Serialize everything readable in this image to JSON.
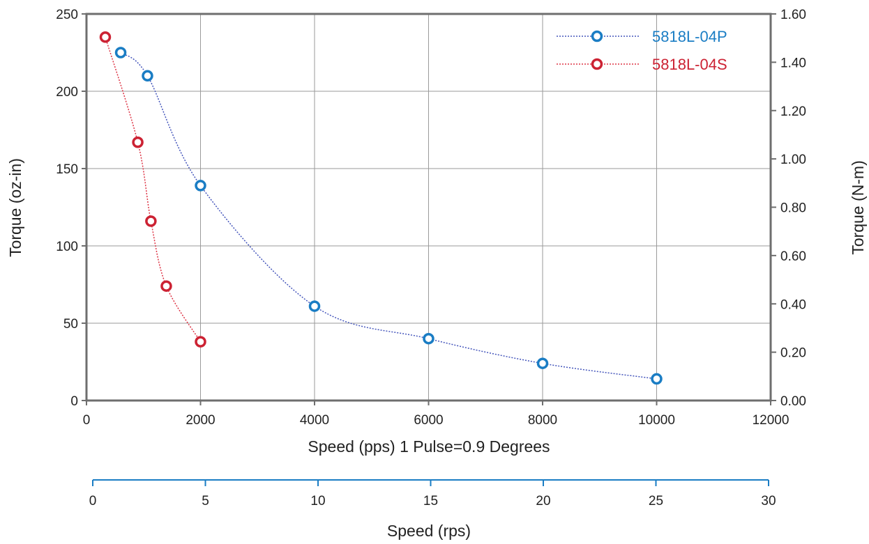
{
  "chart_data": {
    "type": "line",
    "xlabel": "Speed (pps) 1 Pulse=0.9 Degrees",
    "ylabel": "Torque (oz-in)",
    "ylabel_right": "Torque (N-m)",
    "xlabel_secondary": "Speed (rps)",
    "xlim": [
      0,
      12000
    ],
    "ylim": [
      0,
      250
    ],
    "ylim_right": [
      0,
      1.6
    ],
    "xlim_secondary": [
      0,
      30
    ],
    "x_ticks": [
      "0",
      "2000",
      "4000",
      "6000",
      "8000",
      "10000",
      "12000"
    ],
    "y_ticks": [
      "0",
      "50",
      "100",
      "150",
      "200",
      "250"
    ],
    "y_ticks_right": [
      "0.00",
      "0.20",
      "0.40",
      "0.60",
      "0.80",
      "1.00",
      "1.20",
      "1.40",
      "1.60"
    ],
    "x_ticks_secondary": [
      "0",
      "5",
      "10",
      "15",
      "20",
      "25",
      "30"
    ],
    "grid": true,
    "legend_position": "top-right",
    "series": [
      {
        "name": "5818L-04P",
        "color": "#1a7dc4",
        "line_color": "#4455bb",
        "x": [
          600,
          1070,
          2000,
          4000,
          6000,
          8000,
          10000
        ],
        "y": [
          225,
          210,
          139,
          61,
          40,
          24,
          14
        ]
      },
      {
        "name": "5818L-04S",
        "color": "#cc2233",
        "line_color": "#dd3344",
        "x": [
          330,
          900,
          1130,
          1400,
          2000
        ],
        "y": [
          235,
          167,
          116,
          74,
          38
        ]
      }
    ]
  }
}
